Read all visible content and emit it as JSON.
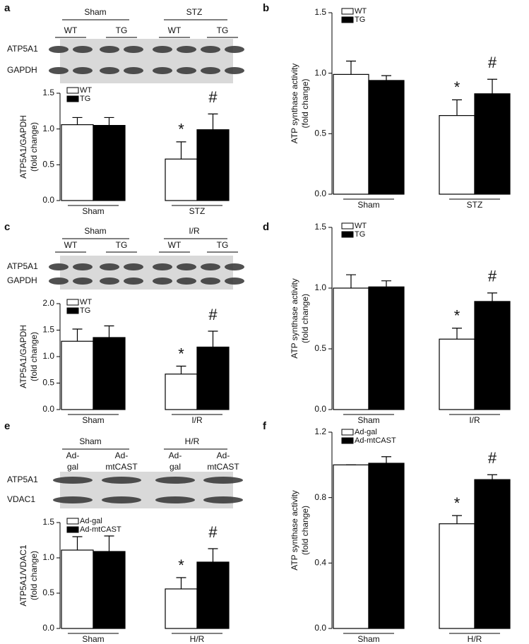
{
  "chart_data": [
    {
      "type": "bar",
      "panel": "a",
      "y_label": [
        "ATP5A1/GAPDH",
        "(fold change)"
      ],
      "categories": [
        "Sham",
        "STZ"
      ],
      "series": [
        {
          "name": "WT",
          "color": "#ffffff",
          "values": [
            1.06,
            0.58
          ],
          "errors": [
            0.1,
            0.24
          ]
        },
        {
          "name": "TG",
          "color": "#000000",
          "values": [
            1.05,
            0.99
          ],
          "errors": [
            0.11,
            0.22
          ]
        }
      ],
      "ylim": [
        0,
        1.5
      ],
      "yticks": [
        {
          "value": 0,
          "label": "0.0"
        },
        {
          "value": 0.5,
          "label": "0.5"
        },
        {
          "value": 1,
          "label": "1.0"
        },
        {
          "value": 1.5,
          "label": "1.5"
        }
      ],
      "annotations": [
        "*",
        "#"
      ]
    },
    {
      "type": "bar",
      "panel": "b",
      "y_label": [
        "ATP synthase activity",
        "(fold change)"
      ],
      "categories": [
        "Sham",
        "STZ"
      ],
      "series": [
        {
          "name": "WT",
          "color": "#ffffff",
          "values": [
            0.99,
            0.65
          ],
          "errors": [
            0.11,
            0.13
          ]
        },
        {
          "name": "TG",
          "color": "#000000",
          "values": [
            0.94,
            0.83
          ],
          "errors": [
            0.04,
            0.12
          ]
        }
      ],
      "ylim": [
        0,
        1.5
      ],
      "yticks": [
        {
          "value": 0,
          "label": "0.0"
        },
        {
          "value": 0.5,
          "label": "0.5"
        },
        {
          "value": 1,
          "label": "1.0"
        },
        {
          "value": 1.5,
          "label": "1.5"
        }
      ],
      "annotations": [
        "*",
        "#"
      ]
    },
    {
      "type": "bar",
      "panel": "c",
      "y_label": [
        "ATP5A1/GAPDH",
        "(fold change)"
      ],
      "categories": [
        "Sham",
        "I/R"
      ],
      "series": [
        {
          "name": "WT",
          "color": "#ffffff",
          "values": [
            1.29,
            0.67
          ],
          "errors": [
            0.23,
            0.15
          ]
        },
        {
          "name": "TG",
          "color": "#000000",
          "values": [
            1.36,
            1.18
          ],
          "errors": [
            0.22,
            0.3
          ]
        }
      ],
      "ylim": [
        0,
        2
      ],
      "yticks": [
        {
          "value": 0,
          "label": "0.0"
        },
        {
          "value": 0.5,
          "label": "0.5"
        },
        {
          "value": 1,
          "label": "1.0"
        },
        {
          "value": 1.5,
          "label": "1.5"
        },
        {
          "value": 2,
          "label": "2.0"
        }
      ],
      "annotations": [
        "*",
        "#"
      ]
    },
    {
      "type": "bar",
      "panel": "d",
      "y_label": [
        "ATP synthase activity",
        "(fold change)"
      ],
      "categories": [
        "Sham",
        "I/R"
      ],
      "series": [
        {
          "name": "WT",
          "color": "#ffffff",
          "values": [
            1.0,
            0.58
          ],
          "errors": [
            0.11,
            0.09
          ]
        },
        {
          "name": "TG",
          "color": "#000000",
          "values": [
            1.01,
            0.89
          ],
          "errors": [
            0.05,
            0.07
          ]
        }
      ],
      "ylim": [
        0,
        1.5
      ],
      "yticks": [
        {
          "value": 0,
          "label": "0.0"
        },
        {
          "value": 0.5,
          "label": "0.5"
        },
        {
          "value": 1,
          "label": "1.0"
        },
        {
          "value": 1.5,
          "label": "1.5"
        }
      ],
      "annotations": [
        "*",
        "#"
      ]
    },
    {
      "type": "bar",
      "panel": "e",
      "y_label": [
        "ATP5A1/VDAC1",
        "(fold change)"
      ],
      "categories": [
        "Sham",
        "H/R"
      ],
      "series": [
        {
          "name": "Ad-gal",
          "color": "#ffffff",
          "values": [
            1.11,
            0.56
          ],
          "errors": [
            0.19,
            0.16
          ]
        },
        {
          "name": "Ad-mtCAST",
          "color": "#000000",
          "values": [
            1.09,
            0.94
          ],
          "errors": [
            0.22,
            0.19
          ]
        }
      ],
      "ylim": [
        0,
        1.5
      ],
      "yticks": [
        {
          "value": 0,
          "label": "0.0"
        },
        {
          "value": 0.5,
          "label": "0.5"
        },
        {
          "value": 1,
          "label": "1.0"
        },
        {
          "value": 1.5,
          "label": "1.5"
        }
      ],
      "annotations": [
        "*",
        "#"
      ]
    },
    {
      "type": "bar",
      "panel": "f",
      "y_label": [
        "ATP synthase activity",
        "(fold change)"
      ],
      "categories": [
        "Sham",
        "H/R"
      ],
      "series": [
        {
          "name": "Ad-gal",
          "color": "#ffffff",
          "values": [
            1.0,
            0.64
          ],
          "errors": [
            0,
            0.05
          ]
        },
        {
          "name": "Ad-mtCAST",
          "color": "#000000",
          "values": [
            1.01,
            0.91
          ],
          "errors": [
            0.04,
            0.03
          ]
        }
      ],
      "ylim": [
        0,
        1.2
      ],
      "yticks": [
        {
          "value": 0,
          "label": "0.0"
        },
        {
          "value": 0.4,
          "label": "0.4"
        },
        {
          "value": 0.8,
          "label": "0.8"
        },
        {
          "value": 1.2,
          "label": "1.2"
        }
      ],
      "annotations": [
        "*",
        "#"
      ]
    }
  ],
  "blots": [
    {
      "groups": [
        "Sham",
        "STZ"
      ],
      "lanes": [
        [
          "WT"
        ],
        [
          "TG"
        ],
        [
          "WT"
        ],
        [
          "TG"
        ]
      ],
      "rows": [
        "ATP5A1",
        "GAPDH"
      ]
    },
    {
      "groups": [
        "Sham",
        "I/R"
      ],
      "lanes": [
        [
          "WT"
        ],
        [
          "TG"
        ],
        [
          "WT"
        ],
        [
          "TG"
        ]
      ],
      "rows": [
        "ATP5A1",
        "GAPDH"
      ]
    },
    {
      "groups": [
        "Sham",
        "H/R"
      ],
      "lanes": [
        [
          "Ad-",
          "gal"
        ],
        [
          "Ad-",
          "mtCAST"
        ],
        [
          "Ad-",
          "gal"
        ],
        [
          "Ad-",
          "mtCAST"
        ]
      ],
      "rows": [
        "ATP5A1",
        "VDAC1"
      ]
    }
  ]
}
